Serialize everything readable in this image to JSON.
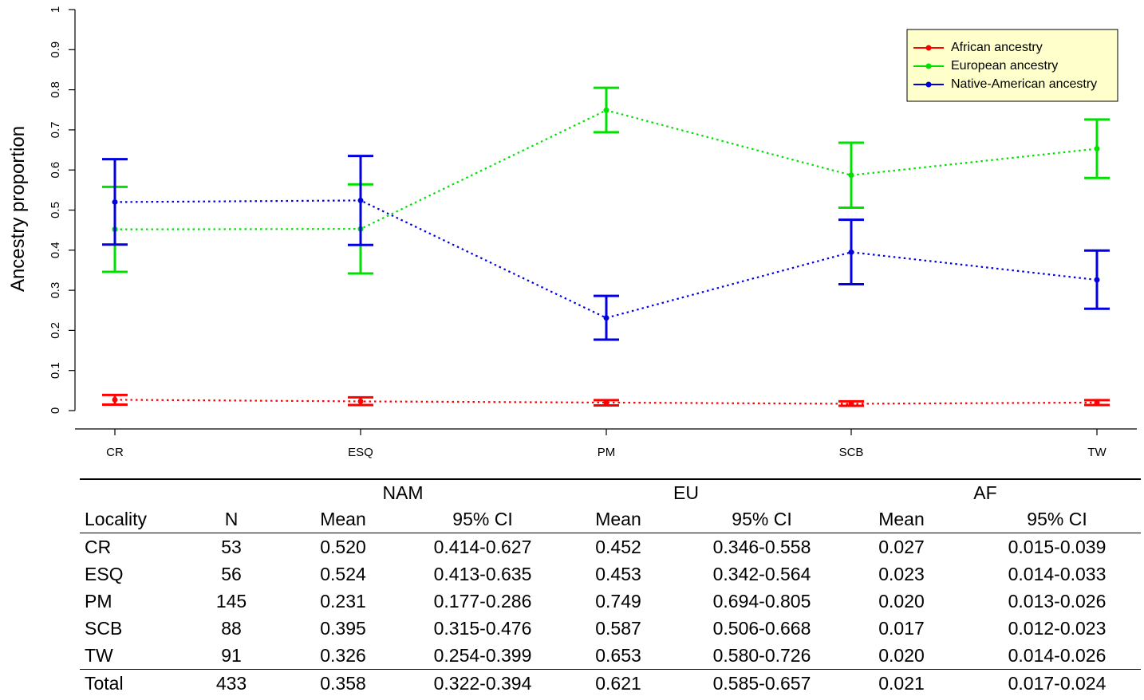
{
  "chart_data": {
    "type": "line",
    "ylabel": "Ancestry proportion",
    "ylim": [
      0,
      1
    ],
    "yticks": [
      "0",
      "0.1",
      "0.2",
      "0.3",
      "0.4",
      "0.5",
      "0.6",
      "0.7",
      "0.8",
      "0.9",
      "1"
    ],
    "categories": [
      "CR",
      "ESQ",
      "PM",
      "SCB",
      "TW"
    ],
    "legend_position": "top-right",
    "series": [
      {
        "name": "African ancestry",
        "color": "#ff0000",
        "values": [
          0.027,
          0.023,
          0.02,
          0.017,
          0.02
        ],
        "ci_low": [
          0.015,
          0.014,
          0.013,
          0.012,
          0.014
        ],
        "ci_high": [
          0.039,
          0.033,
          0.026,
          0.023,
          0.026
        ]
      },
      {
        "name": "European ancestry",
        "color": "#00e000",
        "values": [
          0.452,
          0.453,
          0.749,
          0.587,
          0.653
        ],
        "ci_low": [
          0.346,
          0.342,
          0.694,
          0.506,
          0.58
        ],
        "ci_high": [
          0.558,
          0.564,
          0.805,
          0.668,
          0.726
        ]
      },
      {
        "name": "Native-American ancestry",
        "color": "#0000e0",
        "values": [
          0.52,
          0.524,
          0.231,
          0.395,
          0.326
        ],
        "ci_low": [
          0.414,
          0.413,
          0.177,
          0.315,
          0.254
        ],
        "ci_high": [
          0.627,
          0.635,
          0.286,
          0.476,
          0.399
        ]
      }
    ]
  },
  "table": {
    "group_headers": [
      "NAM",
      "EU",
      "AF"
    ],
    "columns": [
      "Locality",
      "N",
      "Mean",
      "95% CI",
      "Mean",
      "95% CI",
      "Mean",
      "95% CI"
    ],
    "rows": [
      [
        "CR",
        "53",
        "0.520",
        "0.414-0.627",
        "0.452",
        "0.346-0.558",
        "0.027",
        "0.015-0.039"
      ],
      [
        "ESQ",
        "56",
        "0.524",
        "0.413-0.635",
        "0.453",
        "0.342-0.564",
        "0.023",
        "0.014-0.033"
      ],
      [
        "PM",
        "145",
        "0.231",
        "0.177-0.286",
        "0.749",
        "0.694-0.805",
        "0.020",
        "0.013-0.026"
      ],
      [
        "SCB",
        "88",
        "0.395",
        "0.315-0.476",
        "0.587",
        "0.506-0.668",
        "0.017",
        "0.012-0.023"
      ],
      [
        "TW",
        "91",
        "0.326",
        "0.254-0.399",
        "0.653",
        "0.580-0.726",
        "0.020",
        "0.014-0.026"
      ]
    ],
    "total": [
      "Total",
      "433",
      "0.358",
      "0.322-0.394",
      "0.621",
      "0.585-0.657",
      "0.021",
      "0.017-0.024"
    ]
  }
}
